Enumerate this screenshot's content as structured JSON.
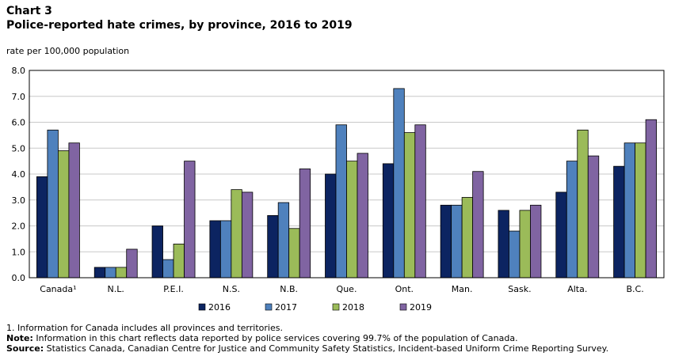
{
  "header": {
    "chart_label": "Chart 3",
    "title": "Police-reported hate crimes, by province, 2016 to 2019"
  },
  "y_unit_label": "rate per 100,000 population",
  "footnotes": {
    "footnote_1": "1. Information for Canada includes all provinces and territories.",
    "note_label": "Note:",
    "note_text": " Information in this chart reflects data reported by police services covering 99.7% of the population of Canada.",
    "source_label": "Source:",
    "source_text": " Statistics Canada, Canadian Centre for Justice and Community Safety Statistics, Incident-based Uniform Crime Reporting Survey."
  },
  "chart_data": {
    "type": "bar",
    "title": "Police-reported hate crimes, by province, 2016 to 2019",
    "xlabel": "",
    "ylabel": "rate per 100,000 population",
    "ylim": [
      0,
      8
    ],
    "yticks": [
      "0.0",
      "1.0",
      "2.0",
      "3.0",
      "4.0",
      "5.0",
      "6.0",
      "7.0",
      "8.0"
    ],
    "grid": true,
    "legend_position": "bottom",
    "categories": [
      "Canada¹",
      "N.L.",
      "P.E.I.",
      "N.S.",
      "N.B.",
      "Que.",
      "Ont.",
      "Man.",
      "Sask.",
      "Alta.",
      "B.C."
    ],
    "series": [
      {
        "name": "2016",
        "color": "#0c2461",
        "values": [
          3.9,
          0.4,
          2.0,
          2.2,
          2.4,
          4.0,
          4.4,
          2.8,
          2.6,
          3.3,
          4.3
        ]
      },
      {
        "name": "2017",
        "color": "#4f81bd",
        "values": [
          5.7,
          0.4,
          0.7,
          2.2,
          2.9,
          5.9,
          7.3,
          2.8,
          1.8,
          4.5,
          5.2
        ]
      },
      {
        "name": "2018",
        "color": "#9bbb59",
        "values": [
          4.9,
          0.4,
          1.3,
          3.4,
          1.9,
          4.5,
          5.6,
          3.1,
          2.6,
          5.7,
          5.2
        ]
      },
      {
        "name": "2019",
        "color": "#8064a2",
        "values": [
          5.2,
          1.1,
          4.5,
          3.3,
          4.2,
          4.8,
          5.9,
          4.1,
          2.8,
          4.7,
          6.1
        ]
      }
    ]
  }
}
